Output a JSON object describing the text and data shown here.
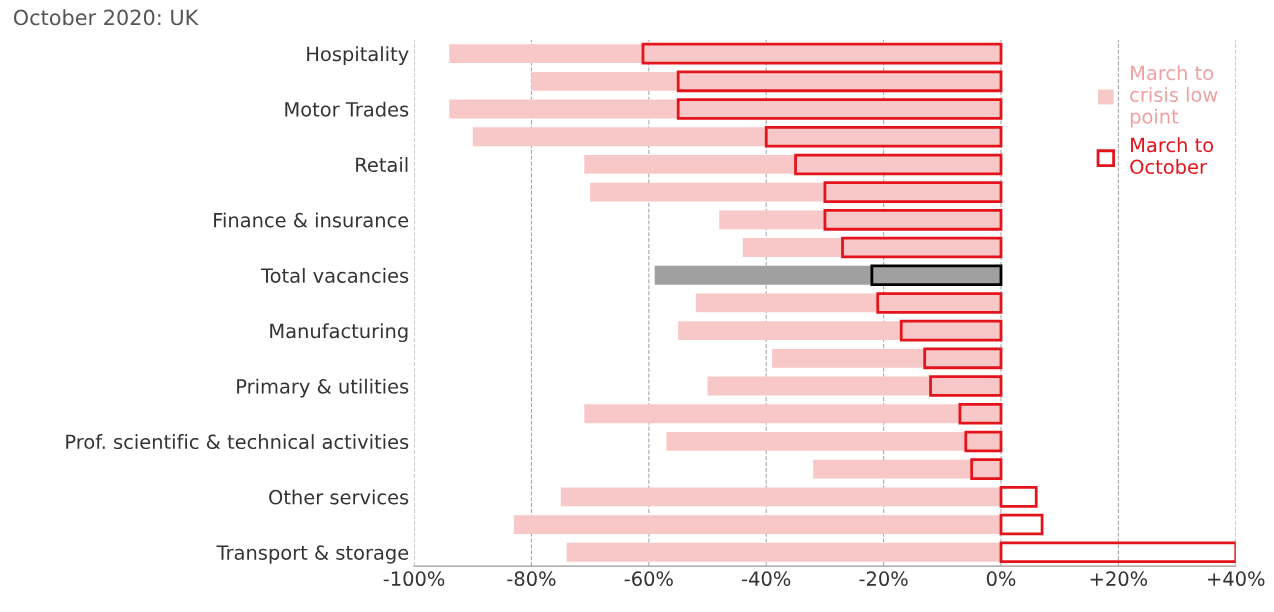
{
  "chart_data": {
    "type": "bar",
    "orientation": "horizontal",
    "title": "October 2020: UK",
    "categories": [
      "Hospitality",
      null,
      "Motor Trades",
      null,
      "Retail",
      null,
      "Finance & insurance",
      null,
      "Total vacancies",
      null,
      "Manufacturing",
      null,
      "Primary & utilities",
      null,
      "Prof. scientific & technical activities",
      null,
      "Other services",
      null,
      "Transport & storage"
    ],
    "series": [
      {
        "name": "March to\ncrisis low\npoint",
        "color": "#f8c8c8",
        "colors": [
          "#f8c8c8",
          "#f8c8c8",
          "#f8c8c8",
          "#f8c8c8",
          "#f8c8c8",
          "#f8c8c8",
          "#f8c8c8",
          "#f8c8c8",
          "#a0a0a0",
          "#f8c8c8",
          "#f8c8c8",
          "#f8c8c8",
          "#f8c8c8",
          "#f8c8c8",
          "#f8c8c8",
          "#f8c8c8",
          "#f8c8c8",
          "#f8c8c8",
          "#f8c8c8"
        ],
        "values": [
          -94,
          -80,
          -94,
          -90,
          -71,
          -70,
          -48,
          -44,
          -59,
          -52,
          -55,
          -39,
          -50,
          -71,
          -57,
          -32,
          -75,
          -83,
          -74
        ]
      },
      {
        "name": "March to\nOctober",
        "color": "#e3141c",
        "colors": [
          "#e3141c",
          "#e3141c",
          "#e3141c",
          "#e3141c",
          "#e3141c",
          "#e3141c",
          "#e3141c",
          "#e3141c",
          "#000000",
          "#e3141c",
          "#e3141c",
          "#e3141c",
          "#e3141c",
          "#e3141c",
          "#e3141c",
          "#e3141c",
          "#e3141c",
          "#e3141c",
          "#e3141c"
        ],
        "values": [
          -61,
          -55,
          -55,
          -40,
          -35,
          -30,
          -30,
          -27,
          -22,
          -21,
          -17,
          -13,
          -12,
          -7,
          -6,
          -5,
          6,
          7,
          40
        ]
      }
    ],
    "xlim": [
      -100,
      40
    ],
    "xticks": [
      {
        "value": -100,
        "label": "-100%"
      },
      {
        "value": -80,
        "label": "-80%"
      },
      {
        "value": -60,
        "label": "-60%"
      },
      {
        "value": -40,
        "label": "-40%"
      },
      {
        "value": -20,
        "label": "-20%"
      },
      {
        "value": 0,
        "label": "0%"
      },
      {
        "value": 20,
        "label": "+20%"
      },
      {
        "value": 40,
        "label": "+40%"
      }
    ],
    "grid": "x",
    "legend": "top right"
  }
}
